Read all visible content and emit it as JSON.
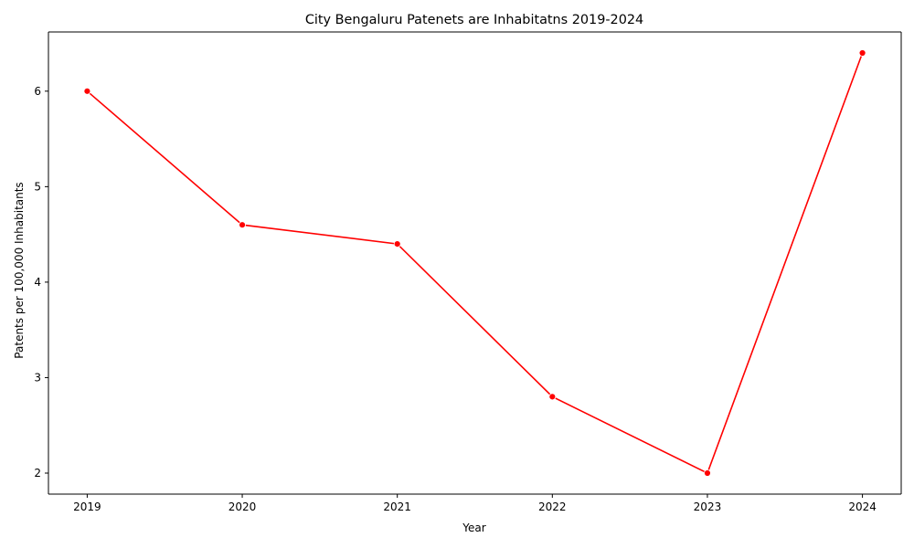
{
  "chart_data": {
    "type": "line",
    "title": "City Bengaluru Patenets are Inhabitatns 2019-2024",
    "xlabel": "Year",
    "ylabel": "Patents per 100,000 Inhabitants",
    "x": [
      2019,
      2020,
      2021,
      2022,
      2023,
      2024
    ],
    "xticks": [
      "2019",
      "2020",
      "2021",
      "2022",
      "2023",
      "2024"
    ],
    "yticks": [
      "2",
      "3",
      "4",
      "5",
      "6"
    ],
    "ytick_values": [
      2,
      3,
      4,
      5,
      6
    ],
    "xlim": [
      2018.75,
      2024.25
    ],
    "ylim": [
      1.78,
      6.62
    ],
    "grid": false,
    "series": [
      {
        "name": "Patents per 100,000 Inhabitants",
        "values": [
          6.0,
          4.6,
          4.4,
          2.8,
          2.0,
          6.4
        ],
        "color": "#ff0000",
        "marker": "circle"
      }
    ]
  }
}
